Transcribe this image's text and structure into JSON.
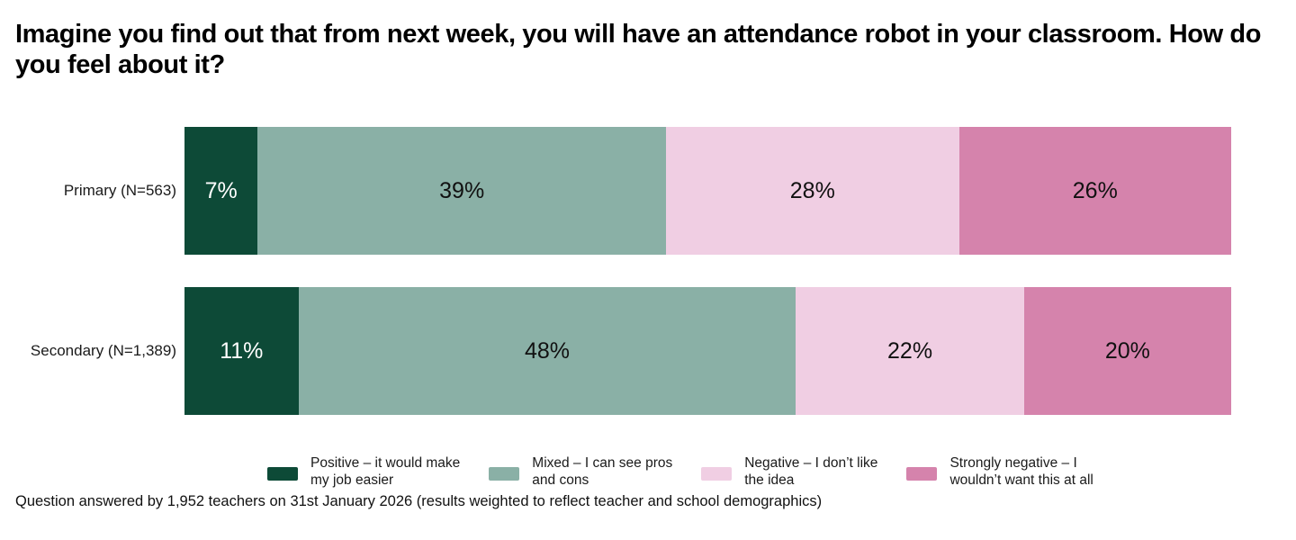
{
  "title": "Imagine you find out that from next week, you will have an attendance robot in your classroom. How do you feel about it?",
  "footer": "Question answered by 1,952 teachers on 31st January 2026 (results weighted to reflect teacher and school demographics)",
  "colors": {
    "positive": "#0D4A37",
    "mixed": "#8AB0A6",
    "negative": "#F0CEE3",
    "strongly_negative": "#D583AC",
    "label_on_dark": "#FFFFFF",
    "label_on_light": "#111111"
  },
  "chart_data": {
    "type": "bar",
    "stacked": true,
    "orientation": "horizontal",
    "value_unit": "%",
    "axis_range": [
      0,
      100
    ],
    "grid": false,
    "legend_position": "bottom",
    "categories": [
      "Primary (N=563)",
      "Secondary (N=1,389)"
    ],
    "series": [
      {
        "name": "Positive – it would make my job easier",
        "color": "#0D4A37",
        "dark": true,
        "values": [
          7,
          11
        ]
      },
      {
        "name": "Mixed – I can see pros and cons",
        "color": "#8AB0A6",
        "dark": false,
        "values": [
          39,
          48
        ]
      },
      {
        "name": "Negative – I don’t like the idea",
        "color": "#F0CEE3",
        "dark": false,
        "values": [
          28,
          22
        ]
      },
      {
        "name": "Strongly negative – I wouldn’t want this at all",
        "color": "#D583AC",
        "dark": false,
        "values": [
          26,
          20
        ]
      }
    ]
  },
  "legend": [
    {
      "lines": [
        "Positive – it would make",
        "my job easier"
      ],
      "color": "#0D4A37"
    },
    {
      "lines": [
        "Mixed – I can see pros",
        "and cons"
      ],
      "color": "#8AB0A6"
    },
    {
      "lines": [
        "Negative – I don’t like",
        "the idea"
      ],
      "color": "#F0CEE3"
    },
    {
      "lines": [
        "Strongly negative – I",
        "wouldn’t want this at all"
      ],
      "color": "#D583AC"
    }
  ]
}
